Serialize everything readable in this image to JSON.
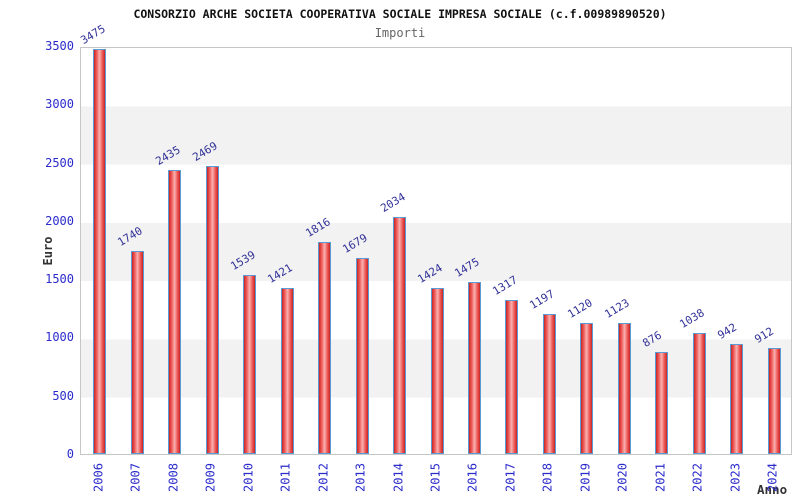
{
  "chart_data": {
    "type": "bar",
    "title": "CONSORZIO ARCHE SOCIETA COOPERATIVA SOCIALE IMPRESA SOCIALE (c.f.00989890520)",
    "subtitle": "Importi",
    "xlabel": "Anno",
    "ylabel": "Euro",
    "categories": [
      "2006",
      "2007",
      "2008",
      "2009",
      "2010",
      "2011",
      "2012",
      "2013",
      "2014",
      "2015",
      "2016",
      "2017",
      "2018",
      "2019",
      "2020",
      "2021",
      "2022",
      "2023",
      "2024"
    ],
    "values": [
      3475,
      1740,
      2435,
      2469,
      1539,
      1421,
      1816,
      1679,
      2034,
      1424,
      1475,
      1317,
      1197,
      1120,
      1123,
      876,
      1038,
      942,
      912
    ],
    "ylim": [
      0,
      3500
    ],
    "yticks": [
      0,
      500,
      1000,
      1500,
      2000,
      2500,
      3000,
      3500
    ],
    "grid": "horizontal-bands",
    "legend": null
  },
  "colors": {
    "tick_label": "#2b2bcc",
    "value_label": "#333399",
    "band_gray": "#f2f2f2",
    "plot_border": "#c6c6c6",
    "bar_border": "#5b9bd5",
    "bar_edge": "#c22828",
    "bar_center": "#f8b2b2",
    "title": "#111111",
    "subtitle": "#666666",
    "axis_label": "#333333",
    "background": "#ffffff"
  }
}
